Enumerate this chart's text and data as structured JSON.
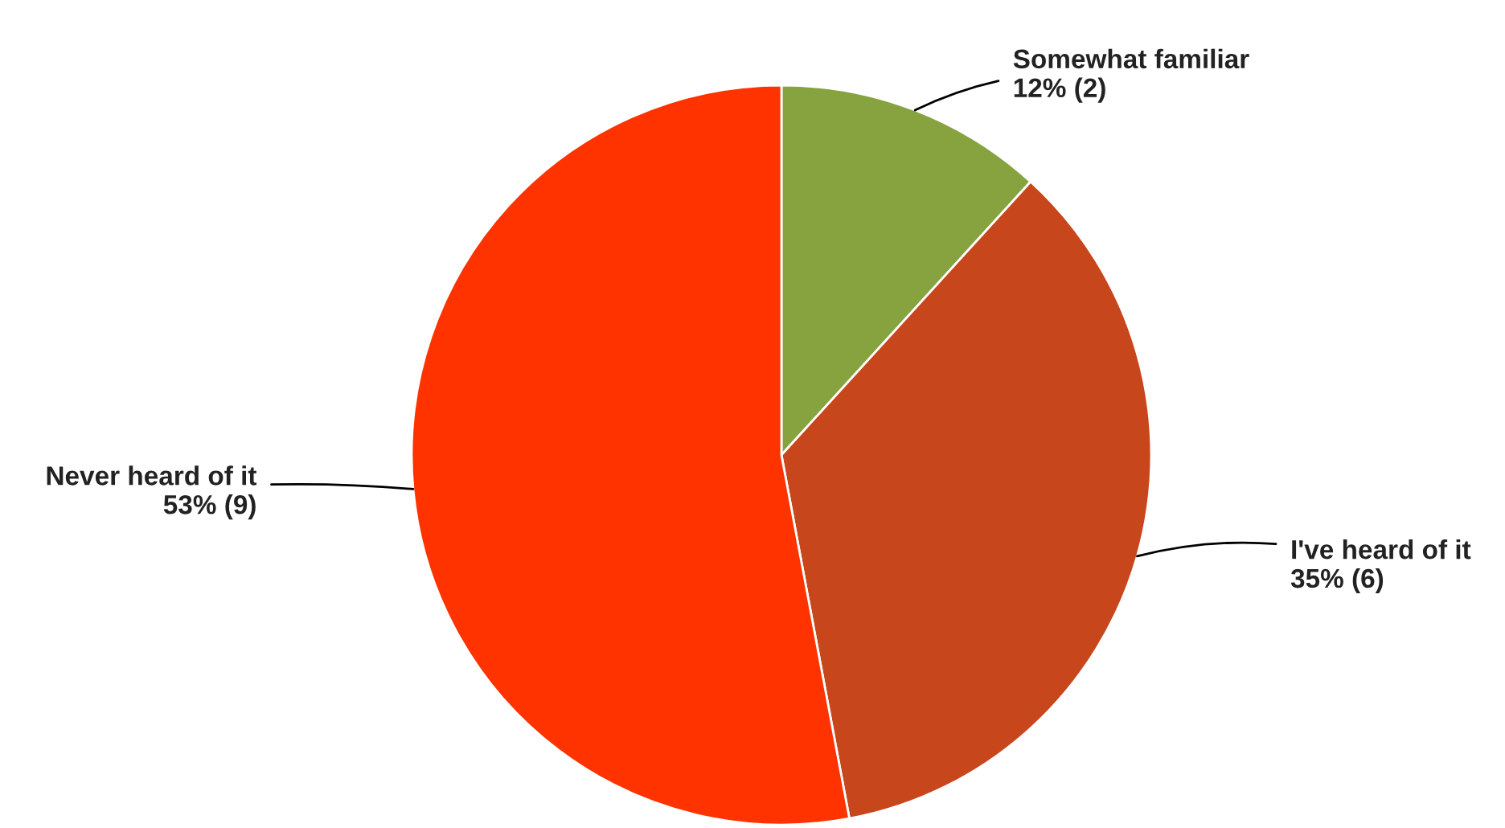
{
  "chart_data": {
    "type": "pie",
    "categories": [
      "Somewhat familiar",
      "I've heard of it",
      "Never heard of it"
    ],
    "values": [
      2,
      6,
      9
    ],
    "colors": [
      "#86a33f",
      "#c8461c",
      "#ff3300"
    ],
    "value_labels": [
      "12% (2)",
      "35% (6)",
      "53% (9)"
    ]
  }
}
